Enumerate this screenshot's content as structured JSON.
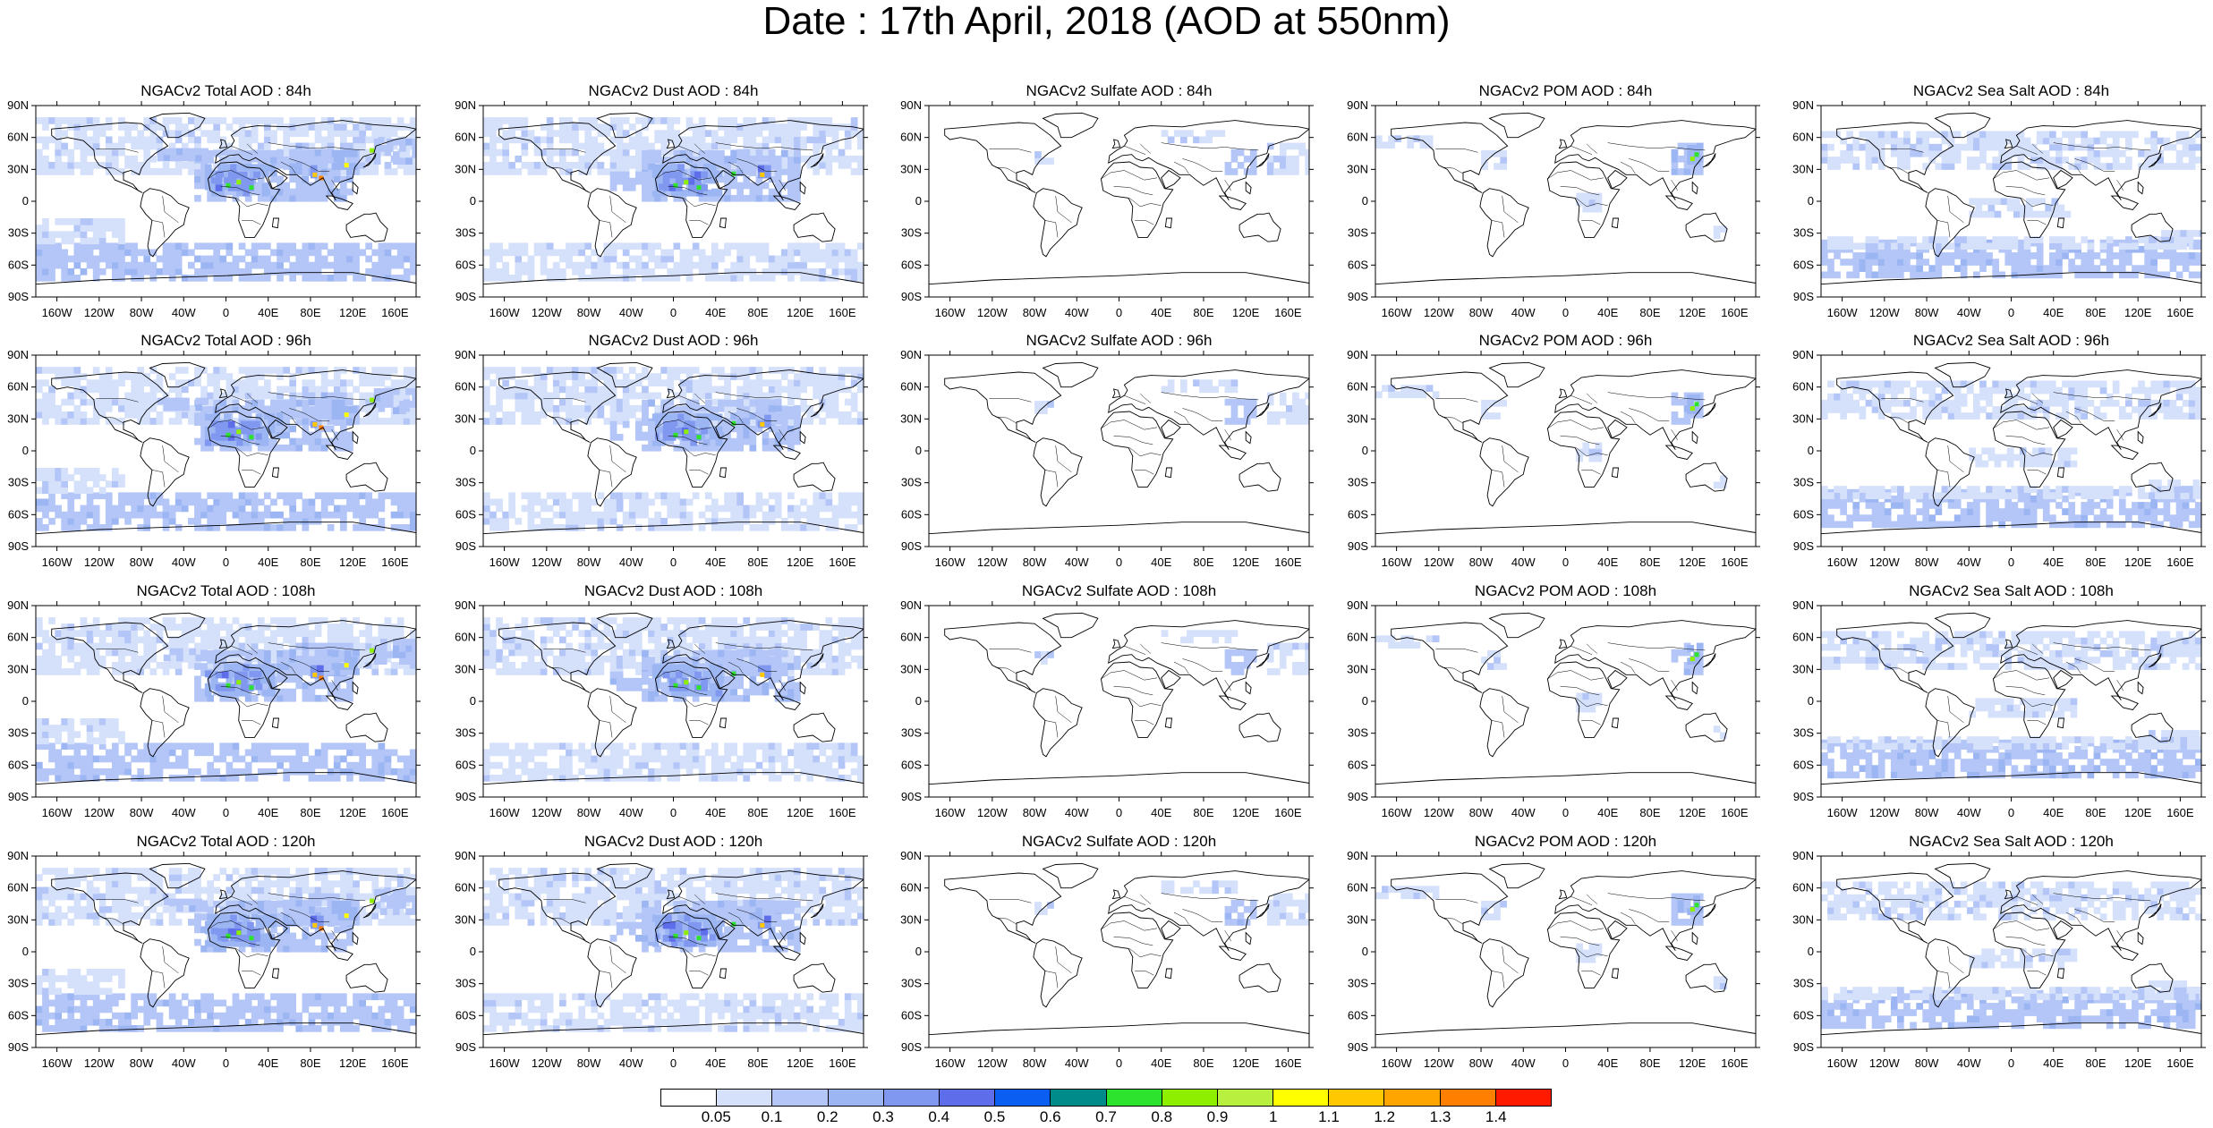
{
  "title": "Date : 17th April, 2018 (AOD at 550nm)",
  "lat_labels": [
    "90N",
    "60N",
    "30N",
    "0",
    "30S",
    "60S",
    "90S"
  ],
  "lon_labels": [
    "160W",
    "120W",
    "80W",
    "40W",
    "0",
    "40E",
    "80E",
    "120E",
    "160E"
  ],
  "panels": [
    {
      "title": "NGACv2 Total AOD : 84h",
      "variable": "total",
      "hour": 84
    },
    {
      "title": "NGACv2 Dust AOD : 84h",
      "variable": "dust",
      "hour": 84
    },
    {
      "title": "NGACv2 Sulfate AOD : 84h",
      "variable": "sulfate",
      "hour": 84
    },
    {
      "title": "NGACv2 POM AOD : 84h",
      "variable": "pom",
      "hour": 84
    },
    {
      "title": "NGACv2 Sea Salt AOD : 84h",
      "variable": "seasalt",
      "hour": 84
    },
    {
      "title": "NGACv2 Total AOD : 96h",
      "variable": "total",
      "hour": 96
    },
    {
      "title": "NGACv2 Dust AOD : 96h",
      "variable": "dust",
      "hour": 96
    },
    {
      "title": "NGACv2 Sulfate AOD : 96h",
      "variable": "sulfate",
      "hour": 96
    },
    {
      "title": "NGACv2 POM AOD : 96h",
      "variable": "pom",
      "hour": 96
    },
    {
      "title": "NGACv2 Sea Salt AOD : 96h",
      "variable": "seasalt",
      "hour": 96
    },
    {
      "title": "NGACv2 Total AOD : 108h",
      "variable": "total",
      "hour": 108
    },
    {
      "title": "NGACv2 Dust AOD : 108h",
      "variable": "dust",
      "hour": 108
    },
    {
      "title": "NGACv2 Sulfate AOD : 108h",
      "variable": "sulfate",
      "hour": 108
    },
    {
      "title": "NGACv2 POM AOD : 108h",
      "variable": "pom",
      "hour": 108
    },
    {
      "title": "NGACv2 Sea Salt AOD : 108h",
      "variable": "seasalt",
      "hour": 108
    },
    {
      "title": "NGACv2 Total AOD : 120h",
      "variable": "total",
      "hour": 120
    },
    {
      "title": "NGACv2 Dust AOD : 120h",
      "variable": "dust",
      "hour": 120
    },
    {
      "title": "NGACv2 Sulfate AOD : 120h",
      "variable": "sulfate",
      "hour": 120
    },
    {
      "title": "NGACv2 POM AOD : 120h",
      "variable": "pom",
      "hour": 120
    },
    {
      "title": "NGACv2 Sea Salt  AOD : 120h",
      "variable": "seasalt",
      "hour": 120
    }
  ],
  "colorbar": {
    "labels": [
      "0.05",
      "0.1",
      "0.2",
      "0.3",
      "0.4",
      "0.5",
      "0.6",
      "0.7",
      "0.8",
      "0.9",
      "1",
      "1.1",
      "1.2",
      "1.3",
      "1.4"
    ],
    "colors": [
      "#ffffff",
      "#d5e0fb",
      "#b3c6f7",
      "#9cb5f3",
      "#8098f0",
      "#5e6de9",
      "#0a5ef2",
      "#008b8b",
      "#2ee32e",
      "#8fef00",
      "#b8f040",
      "#ffff00",
      "#ffc800",
      "#ffa500",
      "#ff7f00",
      "#ff1a00"
    ]
  }
}
